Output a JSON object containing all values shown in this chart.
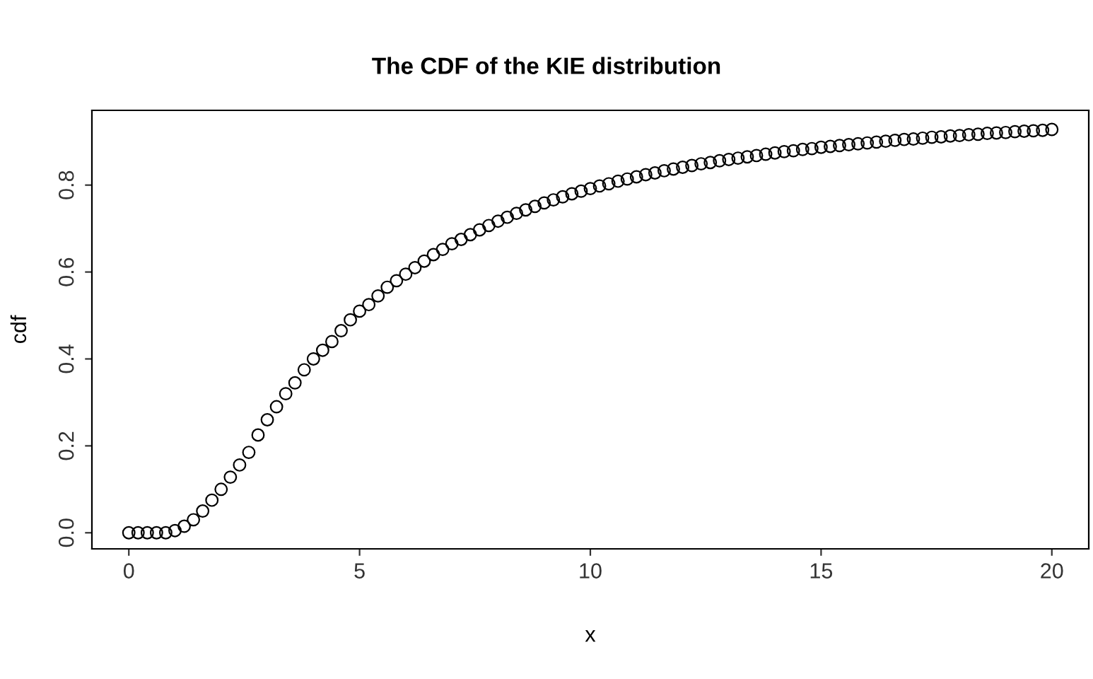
{
  "chart_data": {
    "type": "scatter",
    "title": "The CDF of the KIE distribution",
    "xlabel": "x",
    "ylabel": "cdf",
    "marker": "circle",
    "grid": false,
    "xlim": [
      -0.8,
      20.8
    ],
    "ylim": [
      -0.037,
      0.972
    ],
    "xticks": [
      0,
      5,
      10,
      15,
      20
    ],
    "yticks": [
      {
        "value": 0,
        "label": "0.0"
      },
      0.2,
      0.4,
      0.6,
      0.8
    ],
    "series": [
      {
        "color": "#000000",
        "x": [
          0,
          0.2,
          0.4,
          0.6,
          0.8,
          1.0,
          1.2,
          1.4,
          1.6,
          1.8,
          2.0,
          2.2,
          2.4,
          2.6,
          2.8,
          3.0,
          3.2,
          3.4,
          3.6,
          3.8,
          4.0,
          4.2,
          4.4,
          4.6,
          4.8,
          5.0,
          5.2,
          5.4,
          5.6,
          5.8,
          6.0,
          6.2,
          6.4,
          6.6,
          6.8,
          7.0,
          7.2,
          7.4,
          7.6,
          7.8,
          8.0,
          8.2,
          8.4,
          8.6,
          8.8,
          9.0,
          9.2,
          9.4,
          9.6,
          9.8,
          10.0,
          10.2,
          10.4,
          10.6,
          10.8,
          11.0,
          11.2,
          11.4,
          11.6,
          11.8,
          12.0,
          12.2,
          12.4,
          12.6,
          12.8,
          13.0,
          13.2,
          13.4,
          13.6,
          13.8,
          14.0,
          14.2,
          14.4,
          14.6,
          14.8,
          15.0,
          15.2,
          15.4,
          15.6,
          15.8,
          16.0,
          16.2,
          16.4,
          16.6,
          16.8,
          17.0,
          17.2,
          17.4,
          17.6,
          17.8,
          18.0,
          18.2,
          18.4,
          18.6,
          18.8,
          19.0,
          19.2,
          19.4,
          19.6,
          19.8,
          20.0
        ],
        "values": [
          0,
          0,
          0,
          0,
          0,
          0.005,
          0.015,
          0.03,
          0.05,
          0.075,
          0.1,
          0.128,
          0.156,
          0.185,
          0.225,
          0.26,
          0.29,
          0.32,
          0.345,
          0.375,
          0.4,
          0.42,
          0.44,
          0.465,
          0.49,
          0.51,
          0.525,
          0.545,
          0.565,
          0.58,
          0.595,
          0.61,
          0.625,
          0.64,
          0.652,
          0.665,
          0.675,
          0.686,
          0.697,
          0.707,
          0.717,
          0.726,
          0.735,
          0.743,
          0.751,
          0.759,
          0.766,
          0.773,
          0.78,
          0.786,
          0.792,
          0.798,
          0.803,
          0.809,
          0.814,
          0.819,
          0.824,
          0.828,
          0.833,
          0.837,
          0.841,
          0.845,
          0.849,
          0.852,
          0.856,
          0.859,
          0.862,
          0.865,
          0.868,
          0.871,
          0.874,
          0.877,
          0.879,
          0.882,
          0.884,
          0.887,
          0.889,
          0.891,
          0.893,
          0.895,
          0.897,
          0.899,
          0.901,
          0.903,
          0.905,
          0.906,
          0.908,
          0.91,
          0.911,
          0.913,
          0.914,
          0.916,
          0.917,
          0.919,
          0.92,
          0.921,
          0.923,
          0.924,
          0.925,
          0.926,
          0.928
        ]
      }
    ]
  }
}
